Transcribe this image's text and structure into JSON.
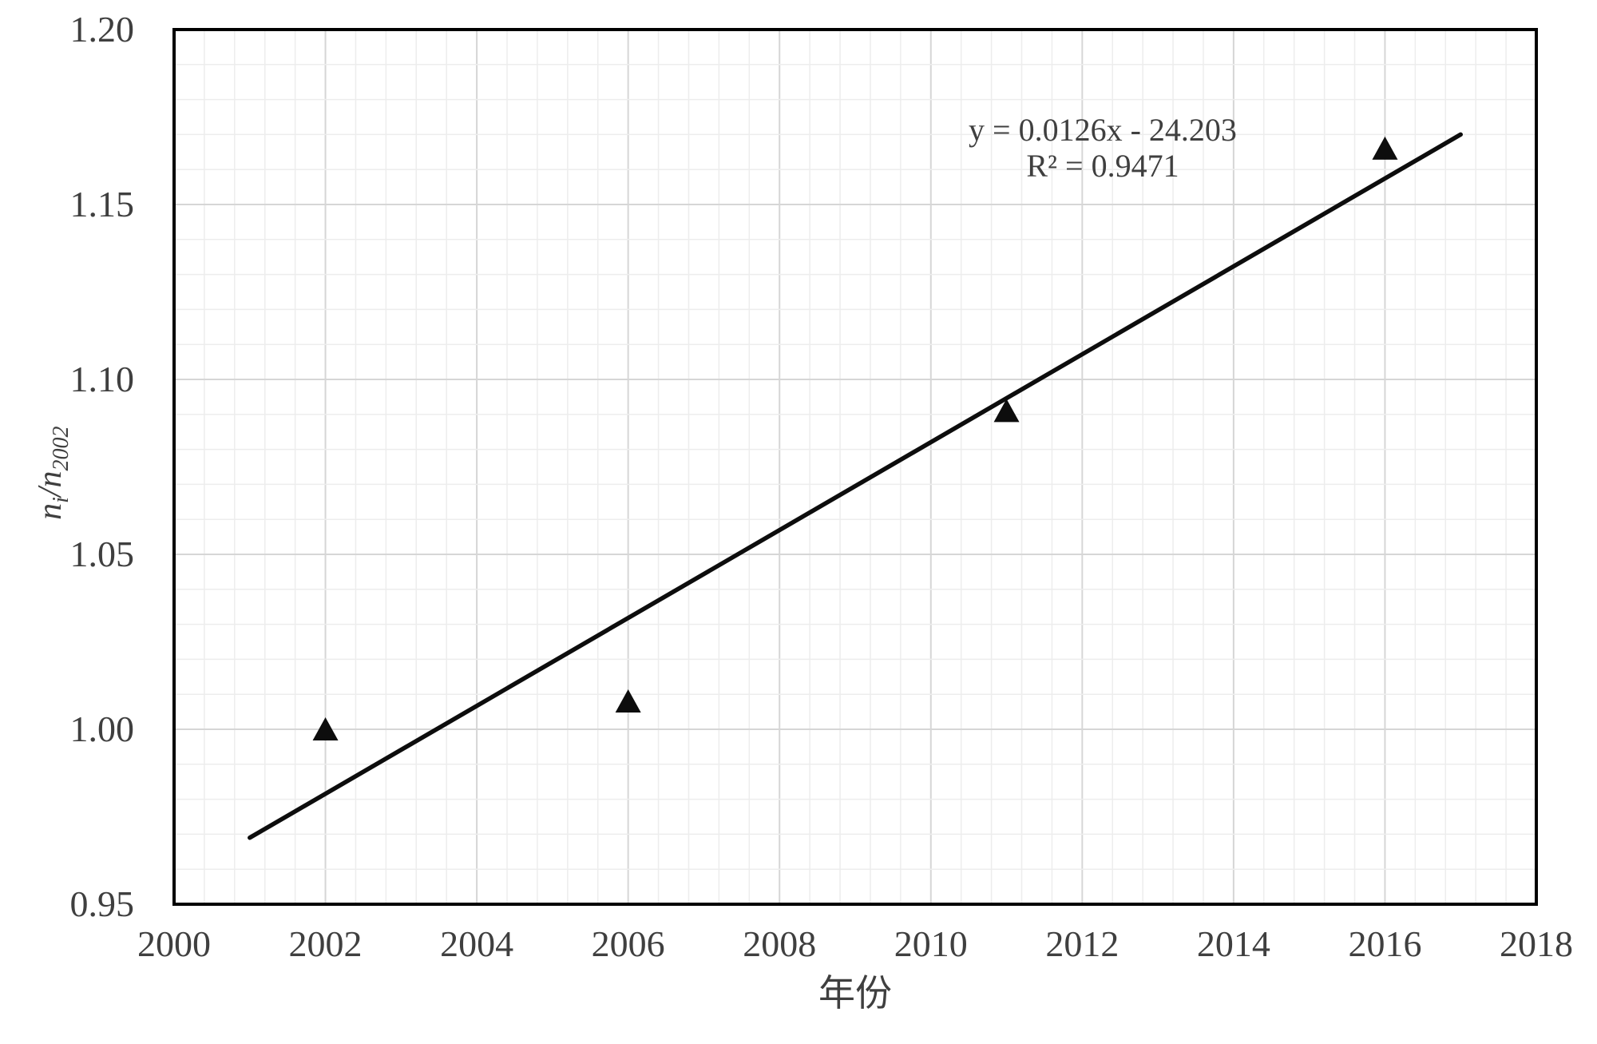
{
  "chart_data": {
    "type": "scatter",
    "xlabel": "年份",
    "ylabel": "n_i/n_2002",
    "ylabel_parts": {
      "base1": "n",
      "sub1": "i",
      "slash": "/",
      "base2": "n",
      "sub2": "2002"
    },
    "xlim": [
      2000,
      2018
    ],
    "ylim": [
      0.95,
      1.2
    ],
    "x_ticks": [
      "2000",
      "2002",
      "2004",
      "2006",
      "2008",
      "2010",
      "2012",
      "2014",
      "2016",
      "2018"
    ],
    "y_ticks": [
      "0.95",
      "1.00",
      "1.05",
      "1.10",
      "1.15",
      "1.20"
    ],
    "x_major_step": 2,
    "y_major_step": 0.05,
    "x_minor_step": 0.4,
    "y_minor_step": 0.01,
    "grid": true,
    "legend": "none",
    "marker": "triangle-up",
    "points": [
      {
        "x": 2002,
        "y": 1.0
      },
      {
        "x": 2006,
        "y": 1.008
      },
      {
        "x": 2011,
        "y": 1.091
      },
      {
        "x": 2016,
        "y": 1.166
      }
    ],
    "trendline": {
      "x1": 2001,
      "y1": 0.969,
      "x2": 2017,
      "y2": 1.17
    },
    "equation": "y = 0.0126x - 24.203",
    "r_squared": "R² = 0.9471",
    "colors": {
      "marker": "#0d0d0d",
      "trendline": "#0d0d0d",
      "grid_minor": "#ededed",
      "grid_major": "#d6d6d6",
      "axis_border": "#000000",
      "text": "#3f3f3f"
    }
  }
}
